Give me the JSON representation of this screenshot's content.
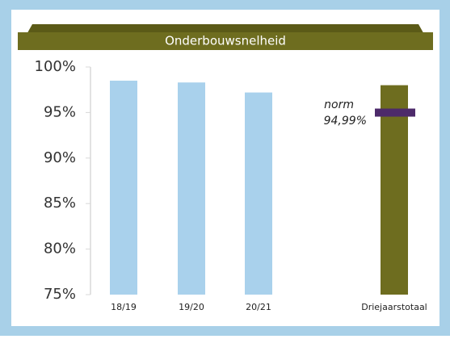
{
  "chart_data": {
    "type": "bar",
    "title": "Onderbouwsnelheid",
    "categories": [
      "18/19",
      "19/20",
      "20/21",
      "Driejaarstotaal"
    ],
    "values": [
      98.5,
      98.3,
      97.2,
      98.0
    ],
    "colors": [
      "#a9d1ec",
      "#a9d1ec",
      "#a9d1ec",
      "#6e6d1f"
    ],
    "ylim": [
      75,
      100
    ],
    "yticks": [
      {
        "value": 75,
        "label": "75%"
      },
      {
        "value": 80,
        "label": "80%"
      },
      {
        "value": 85,
        "label": "85%"
      },
      {
        "value": 90,
        "label": "90%"
      },
      {
        "value": 95,
        "label": "95%"
      },
      {
        "value": 100,
        "label": "100%"
      }
    ],
    "norm": 94.99,
    "norm_text": "norm",
    "norm_label": "94,99%",
    "norm_color": "#4d2a6a"
  }
}
